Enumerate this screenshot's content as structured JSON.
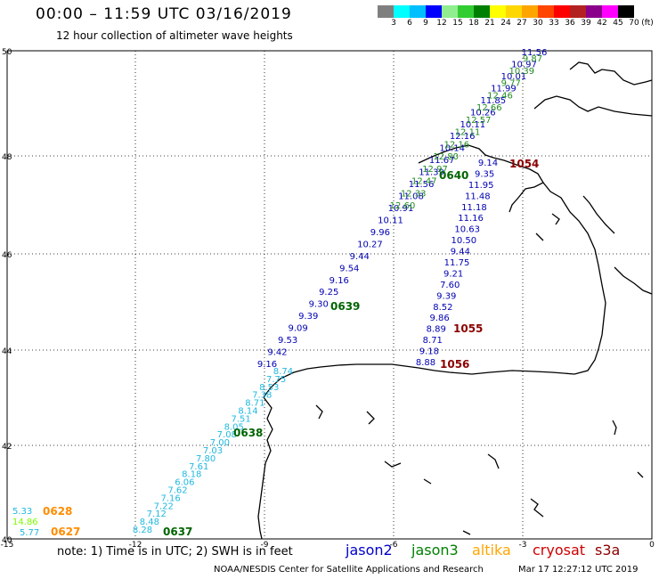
{
  "header": {
    "title": "00:00 – 11:59 UTC 03/16/2019",
    "subtitle": "12 hour collection of altimeter wave heights"
  },
  "color_scale": {
    "unit": "(ft)",
    "labels": [
      "3",
      "6",
      "9",
      "12",
      "15",
      "18",
      "21",
      "24",
      "27",
      "30",
      "33",
      "36",
      "39",
      "42",
      "45",
      "70"
    ],
    "colors": [
      "#7f7f7f",
      "#00ffff",
      "#00bfff",
      "#0000ff",
      "#90ee90",
      "#32cd32",
      "#008000",
      "#ffff00",
      "#ffd700",
      "#ffa500",
      "#ff4500",
      "#ff0000",
      "#b22222",
      "#8b008b",
      "#ff00ff",
      "#000000"
    ]
  },
  "axes": {
    "lon_ticks": [
      "-15",
      "-12",
      "-9",
      "-6",
      "-3",
      "0"
    ],
    "lat_ticks": [
      "50",
      "48",
      "46",
      "44",
      "42",
      "40"
    ]
  },
  "tracks": [
    {
      "satellite": "jason2",
      "color": "#0000b4",
      "pass": "0639",
      "time_label_color": "#006400",
      "values": [
        "11.56",
        "10.97",
        "10.01",
        "11.99",
        "11.85",
        "10.26",
        "10.11",
        "12.16",
        "10.14",
        "11.67",
        "11.39",
        "11.56",
        "11.08",
        "10.91",
        "10.11",
        "9.96",
        "10.27",
        "9.44",
        "9.54",
        "9.16",
        "9.25",
        "9.30",
        "9.39",
        "9.09",
        "9.53",
        "9.42",
        "9.16"
      ]
    },
    {
      "satellite": "jason3",
      "color": "#228b22",
      "pass": "0640",
      "values": [
        "9.87",
        "10.39",
        "9.77",
        "12.46",
        "12.66",
        "12.57",
        "12.11",
        "12.16",
        "12.80",
        "12.97",
        "12.47",
        "12.33",
        "12.60"
      ]
    },
    {
      "satellite": "jason2",
      "color": "#0000b4",
      "pass": "1055",
      "values": [
        "9.14",
        "9.35",
        "11.95",
        "11.48",
        "11.18",
        "11.16",
        "10.63",
        "10.50",
        "9.44",
        "11.75",
        "9.21",
        "7.60",
        "9.39",
        "8.52",
        "9.86",
        "8.89",
        "8.71",
        "9.18",
        "8.88"
      ]
    },
    {
      "satellite": "altika",
      "color": "#1fb8e0",
      "pass": "0638",
      "values": [
        "8.74",
        "7.75",
        "8.53",
        "7.38",
        "8.71",
        "8.14",
        "7.51",
        "8.05",
        "7.08",
        "7.00",
        "7.03",
        "7.80",
        "7.61",
        "8.18",
        "6.06",
        "7.62",
        "7.16",
        "7.22",
        "7.12",
        "8.48",
        "8.28"
      ]
    }
  ],
  "time_labels": [
    {
      "text": "1054",
      "color": "#8b0000"
    },
    {
      "text": "0640",
      "color": "#006400"
    },
    {
      "text": "0639",
      "color": "#006400"
    },
    {
      "text": "1055",
      "color": "#8b0000"
    },
    {
      "text": "1056",
      "color": "#8b0000"
    },
    {
      "text": "0638",
      "color": "#006400"
    },
    {
      "text": "0637",
      "color": "#006400"
    },
    {
      "text": "0628",
      "color": "#ff8c00"
    },
    {
      "text": "0627",
      "color": "#ff8c00"
    }
  ],
  "corner_values": [
    {
      "text": "5.33",
      "color": "#1fb8e0"
    },
    {
      "text": "14.86",
      "color": "#7cfc00"
    },
    {
      "text": "5.77",
      "color": "#1fb8e0"
    }
  ],
  "footer": {
    "note": "note:  1) Time is in UTC;  2) SWH is in feet",
    "satellites": [
      {
        "name": "jason2",
        "color": "#0000cd"
      },
      {
        "name": "jason3",
        "color": "#008000"
      },
      {
        "name": "altika",
        "color": "#ffa500"
      },
      {
        "name": "cryosat",
        "color": "#cc0000"
      },
      {
        "name": "s3a",
        "color": "#8b0000"
      }
    ],
    "credit": "NOAA/NESDIS Center for Satellite Applications and Research",
    "timestamp": "Mar 17 12:27:12 UTC 2019"
  }
}
